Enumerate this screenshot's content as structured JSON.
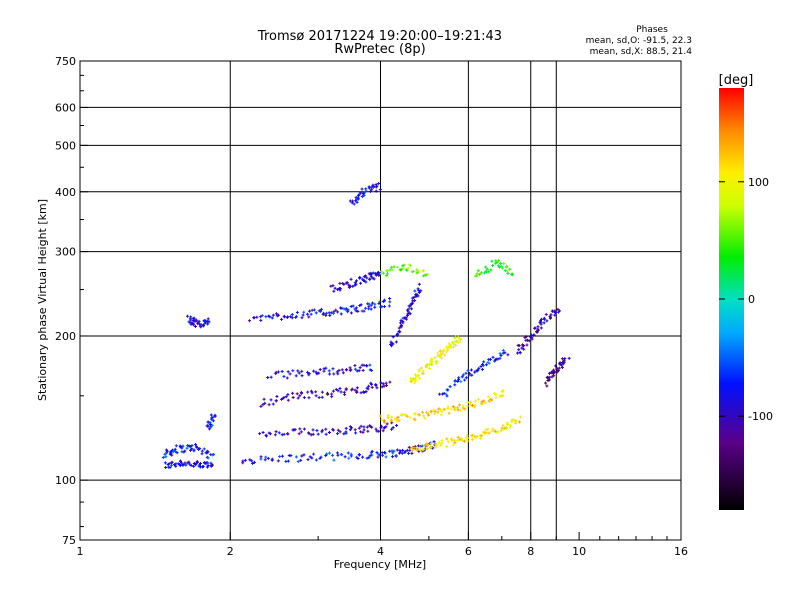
{
  "chart_data": {
    "type": "scatter",
    "title": "Tromsø 20171224 19:20:00–19:21:43",
    "subtitle": "RwPretec (8p)",
    "xlabel": "Frequency [MHz]",
    "ylabel": "Stationary phase Virtual Height [km]",
    "x_scale": "log",
    "y_scale": "log",
    "xlim": [
      1,
      16
    ],
    "ylim": [
      75,
      750
    ],
    "x_ticks": [
      1,
      2,
      4,
      6,
      8,
      10,
      16
    ],
    "y_ticks": [
      75,
      100,
      200,
      300,
      400,
      500,
      600,
      750
    ],
    "grid_x": [
      2,
      4,
      6,
      8,
      9
    ],
    "grid_y": [
      100,
      200,
      300,
      400,
      500,
      600
    ],
    "stats": {
      "heading": "Phases",
      "line1": "mean, sd,O: -91.5, 22.3",
      "line2": "mean, sd,X:  88.5, 21.4"
    },
    "colorbar": {
      "label": "[deg]",
      "ticks": [
        100,
        0,
        -100
      ],
      "range": [
        -180,
        180
      ]
    },
    "traces": [
      {
        "x": [
          1.48,
          1.6,
          1.75,
          1.85
        ],
        "y": [
          107,
          109,
          107,
          109
        ],
        "phase": -100
      },
      {
        "x": [
          1.48,
          1.55,
          1.7,
          1.85
        ],
        "y": [
          113,
          116,
          117,
          112
        ],
        "phase": -95
      },
      {
        "x": [
          1.65,
          1.72,
          1.82
        ],
        "y": [
          218,
          212,
          215
        ],
        "phase": -105
      },
      {
        "x": [
          1.8,
          1.86
        ],
        "y": [
          128,
          136
        ],
        "phase": -90
      },
      {
        "x": [
          2.1,
          2.6,
          3.2,
          3.8,
          4.3,
          4.7,
          5.2
        ],
        "y": [
          110,
          111,
          112,
          113,
          114,
          116,
          119
        ],
        "phase": -95
      },
      {
        "x": [
          4.6,
          5.1,
          5.7,
          6.3,
          7.0,
          7.6
        ],
        "y": [
          116,
          118,
          121,
          124,
          128,
          134
        ],
        "phase": 110
      },
      {
        "x": [
          2.3,
          2.8,
          3.3,
          3.8,
          4.3
        ],
        "y": [
          124,
          126,
          127,
          128,
          130
        ],
        "phase": -110
      },
      {
        "x": [
          4.0,
          4.5,
          5.1,
          5.7,
          6.4,
          7.1
        ],
        "y": [
          134,
          135,
          138,
          141,
          146,
          152
        ],
        "phase": 115
      },
      {
        "x": [
          2.3,
          2.7,
          3.2,
          3.7,
          4.2
        ],
        "y": [
          145,
          150,
          152,
          155,
          160
        ],
        "phase": -115
      },
      {
        "x": [
          2.4,
          2.9,
          3.4,
          3.9
        ],
        "y": [
          165,
          168,
          170,
          172
        ],
        "phase": -105
      },
      {
        "x": [
          2.2,
          2.6,
          3.0,
          3.4,
          3.8,
          4.2
        ],
        "y": [
          217,
          221,
          223,
          226,
          230,
          236
        ],
        "phase": -100
      },
      {
        "x": [
          3.2,
          3.5,
          3.8,
          4.0
        ],
        "y": [
          250,
          258,
          265,
          268
        ],
        "phase": -110
      },
      {
        "x": [
          3.5,
          3.7,
          4.0
        ],
        "y": [
          380,
          400,
          410
        ],
        "phase": -100
      },
      {
        "x": [
          4.2,
          4.4,
          4.6,
          4.8
        ],
        "y": [
          190,
          210,
          230,
          255
        ],
        "phase": -105
      },
      {
        "x": [
          4.6,
          4.9,
          5.2,
          5.5,
          5.8
        ],
        "y": [
          160,
          170,
          180,
          190,
          200
        ],
        "phase": 100
      },
      {
        "x": [
          5.3,
          5.9,
          6.5,
          7.2
        ],
        "y": [
          150,
          165,
          175,
          185
        ],
        "phase": -90
      },
      {
        "x": [
          7.5,
          8.0,
          8.5,
          9.2
        ],
        "y": [
          185,
          200,
          215,
          230
        ],
        "phase": -120
      },
      {
        "x": [
          8.6,
          9.0,
          9.5
        ],
        "y": [
          160,
          170,
          180
        ],
        "phase": -130
      },
      {
        "x": [
          4.0,
          4.5,
          5.0
        ],
        "y": [
          270,
          280,
          268
        ],
        "phase": 60
      },
      {
        "x": [
          6.2,
          6.8,
          7.4
        ],
        "y": [
          265,
          285,
          270
        ],
        "phase": 40
      }
    ]
  }
}
